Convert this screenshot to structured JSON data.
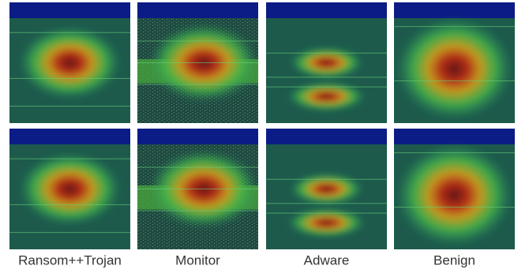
{
  "columns": [
    {
      "label": "Ransom++Trojan"
    },
    {
      "label": "Monitor"
    },
    {
      "label": "Adware"
    },
    {
      "label": "Benign"
    }
  ]
}
